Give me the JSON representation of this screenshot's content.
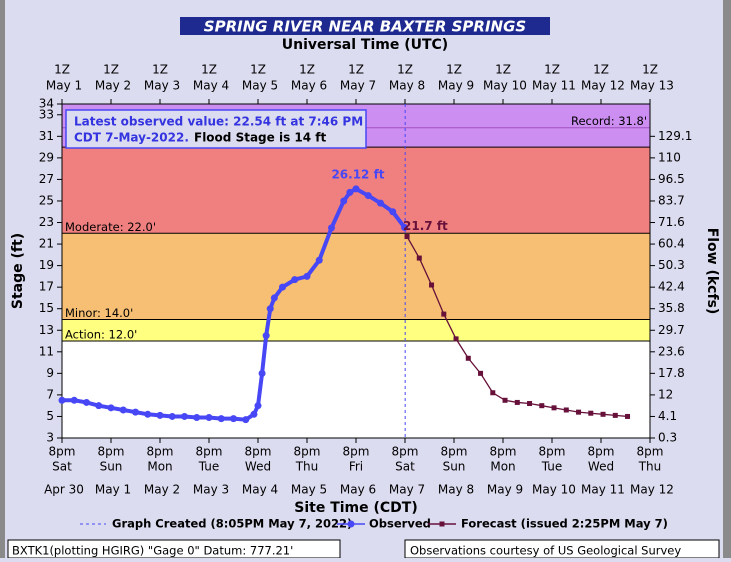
{
  "chart_data": {
    "type": "hydrograph",
    "title": "SPRING RIVER  NEAR BAXTER SPRINGS",
    "top_axis_label": "Universal Time (UTC)",
    "x_label": "Site Time (CDT)",
    "y_label": "Stage (ft)",
    "y2_label": "Flow (kcfs)",
    "xlim": [
      "2022-04-30 20:00",
      "2022-05-12 20:00"
    ],
    "xticks": [
      {
        "value": "2022-04-30 20:00",
        "label": "8pm",
        "day": "Sat",
        "date": "Apr 30"
      },
      {
        "value": "2022-05-01 20:00",
        "label": "8pm",
        "day": "Sun",
        "date": "May 1"
      },
      {
        "value": "2022-05-02 20:00",
        "label": "8pm",
        "day": "Mon",
        "date": "May 2"
      },
      {
        "value": "2022-05-03 20:00",
        "label": "8pm",
        "day": "Tue",
        "date": "May 3"
      },
      {
        "value": "2022-05-04 20:00",
        "label": "8pm",
        "day": "Wed",
        "date": "May 4"
      },
      {
        "value": "2022-05-05 20:00",
        "label": "8pm",
        "day": "Thu",
        "date": "May 5"
      },
      {
        "value": "2022-05-06 20:00",
        "label": "8pm",
        "day": "Fri",
        "date": "May 6"
      },
      {
        "value": "2022-05-07 20:00",
        "label": "8pm",
        "day": "Sat",
        "date": "May 7"
      },
      {
        "value": "2022-05-08 20:00",
        "label": "8pm",
        "day": "Sun",
        "date": "May 8"
      },
      {
        "value": "2022-05-09 20:00",
        "label": "8pm",
        "day": "Mon",
        "date": "May 9"
      },
      {
        "value": "2022-05-10 20:00",
        "label": "8pm",
        "day": "Tue",
        "date": "May 10"
      },
      {
        "value": "2022-05-11 20:00",
        "label": "8pm",
        "day": "Wed",
        "date": "May 11"
      },
      {
        "value": "2022-05-12 20:00",
        "label": "8pm",
        "day": "Thu",
        "date": "May 12"
      }
    ],
    "x2ticks": [
      {
        "value": "2022-05-01 01:00",
        "label": "1Z",
        "date": "May 1"
      },
      {
        "value": "2022-05-02 01:00",
        "label": "1Z",
        "date": "May 2"
      },
      {
        "value": "2022-05-03 01:00",
        "label": "1Z",
        "date": "May 3"
      },
      {
        "value": "2022-05-04 01:00",
        "label": "1Z",
        "date": "May 4"
      },
      {
        "value": "2022-05-05 01:00",
        "label": "1Z",
        "date": "May 5"
      },
      {
        "value": "2022-05-06 01:00",
        "label": "1Z",
        "date": "May 6"
      },
      {
        "value": "2022-05-07 01:00",
        "label": "1Z",
        "date": "May 7"
      },
      {
        "value": "2022-05-08 01:00",
        "label": "1Z",
        "date": "May 8"
      },
      {
        "value": "2022-05-09 01:00",
        "label": "1Z",
        "date": "May 9"
      },
      {
        "value": "2022-05-10 01:00",
        "label": "1Z",
        "date": "May 10"
      },
      {
        "value": "2022-05-11 01:00",
        "label": "1Z",
        "date": "May 11"
      },
      {
        "value": "2022-05-12 01:00",
        "label": "1Z",
        "date": "May 12"
      },
      {
        "value": "2022-05-13 01:00",
        "label": "1Z",
        "date": "May 13"
      }
    ],
    "ylim": [
      3,
      34
    ],
    "yticks": [
      3,
      5,
      7,
      9,
      11,
      13,
      15,
      17,
      19,
      21,
      23,
      25,
      27,
      29,
      31,
      33,
      34
    ],
    "flow_ticks": [
      {
        "stage": 3,
        "flow": 0.3
      },
      {
        "stage": 5,
        "flow": 4.1
      },
      {
        "stage": 7,
        "flow": 12.0
      },
      {
        "stage": 9,
        "flow": 17.8
      },
      {
        "stage": 11,
        "flow": 23.6
      },
      {
        "stage": 13,
        "flow": 29.7
      },
      {
        "stage": 15,
        "flow": 35.8
      },
      {
        "stage": 17,
        "flow": 42.4
      },
      {
        "stage": 19,
        "flow": 50.3
      },
      {
        "stage": 21,
        "flow": 60.4
      },
      {
        "stage": 23,
        "flow": 71.6
      },
      {
        "stage": 25,
        "flow": 83.7
      },
      {
        "stage": 27,
        "flow": 96.5
      },
      {
        "stage": 29,
        "flow": 110.0
      },
      {
        "stage": 31,
        "flow": 129.1
      }
    ],
    "flood_categories": [
      {
        "stage": 12,
        "label": "Action: 12.0'",
        "color": "#ffff80"
      },
      {
        "stage": 14,
        "label": "Minor: 14.0'",
        "color": "#f7bf73"
      },
      {
        "stage": 22,
        "label": "Moderate: 22.0'",
        "color": "#f08080"
      },
      {
        "stage": 30,
        "color": "#cc8ef0"
      }
    ],
    "record": {
      "stage": 31.8,
      "label": "Record: 31.8'"
    },
    "annotation": {
      "line1": "Latest observed value: 22.54 ft at 7:46 PM",
      "line2": "CDT 7-May-2022.",
      "line3": "Flood Stage is 14 ft"
    },
    "created": {
      "x": "2022-05-07 20:05",
      "label": "Graph Created (8:05PM May 7, 2022)"
    },
    "series": [
      {
        "name": "Observed",
        "color": "#4747f5",
        "peak_label": "26.12 ft",
        "peak_index": 29,
        "x": [
          "2022-04-30 20:00",
          "2022-05-01 02:00",
          "2022-05-01 08:00",
          "2022-05-01 14:00",
          "2022-05-01 20:00",
          "2022-05-02 02:00",
          "2022-05-02 08:00",
          "2022-05-02 14:00",
          "2022-05-02 20:00",
          "2022-05-03 02:00",
          "2022-05-03 08:00",
          "2022-05-03 14:00",
          "2022-05-03 20:00",
          "2022-05-04 02:00",
          "2022-05-04 08:00",
          "2022-05-04 14:00",
          "2022-05-04 18:00",
          "2022-05-04 20:00",
          "2022-05-04 22:00",
          "2022-05-05 00:00",
          "2022-05-05 02:00",
          "2022-05-05 04:00",
          "2022-05-05 08:00",
          "2022-05-05 14:00",
          "2022-05-05 20:00",
          "2022-05-06 02:00",
          "2022-05-06 08:00",
          "2022-05-06 14:00",
          "2022-05-06 17:00",
          "2022-05-06 20:00",
          "2022-05-07 02:00",
          "2022-05-07 08:00",
          "2022-05-07 14:00",
          "2022-05-07 19:46"
        ],
        "values": [
          6.5,
          6.5,
          6.3,
          6.0,
          5.8,
          5.6,
          5.4,
          5.2,
          5.1,
          5.0,
          5.0,
          4.9,
          4.9,
          4.8,
          4.8,
          4.7,
          5.2,
          6.0,
          9.0,
          12.5,
          15.0,
          16.0,
          17.0,
          17.7,
          18.0,
          19.5,
          22.5,
          25.0,
          25.8,
          26.12,
          25.5,
          24.8,
          24.0,
          22.54
        ]
      },
      {
        "name": "Forecast (issued 2:25PM May 7)",
        "color": "#66103a",
        "first_label": "21.7 ft",
        "x": [
          "2022-05-07 21:00",
          "2022-05-08 03:00",
          "2022-05-08 09:00",
          "2022-05-08 15:00",
          "2022-05-08 21:00",
          "2022-05-09 03:00",
          "2022-05-09 09:00",
          "2022-05-09 15:00",
          "2022-05-09 21:00",
          "2022-05-10 03:00",
          "2022-05-10 09:00",
          "2022-05-10 15:00",
          "2022-05-10 21:00",
          "2022-05-11 03:00",
          "2022-05-11 09:00",
          "2022-05-11 15:00",
          "2022-05-11 21:00",
          "2022-05-12 03:00",
          "2022-05-12 09:00"
        ],
        "values": [
          21.7,
          19.7,
          17.2,
          14.5,
          12.2,
          10.4,
          9.0,
          7.2,
          6.5,
          6.3,
          6.2,
          6.0,
          5.8,
          5.6,
          5.4,
          5.3,
          5.2,
          5.1,
          5.0
        ]
      }
    ],
    "footer_left": "BXTK1(plotting HGIRG) \"Gage 0\" Datum: 777.21'",
    "footer_right": "Observations courtesy of US Geological Survey"
  }
}
